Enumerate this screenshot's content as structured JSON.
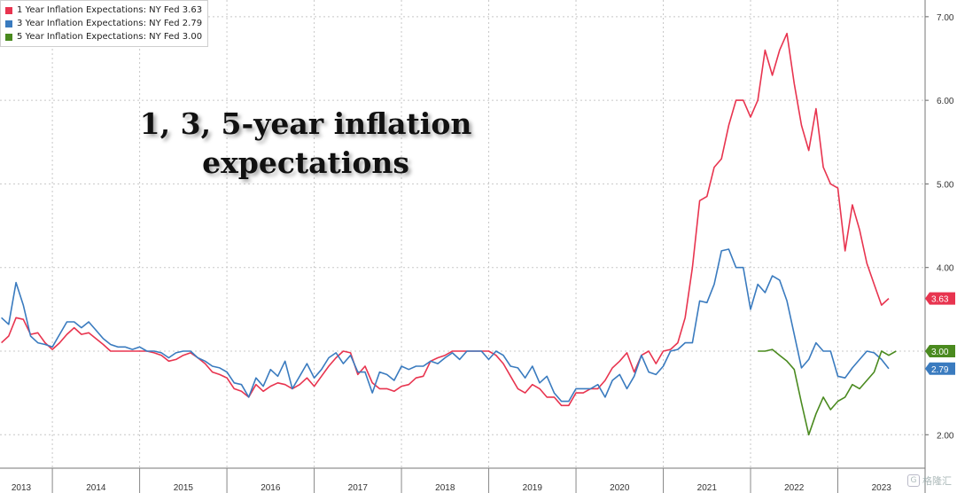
{
  "chart_data": {
    "type": "line",
    "title": "1, 3, 5-year inflation expectations",
    "ylim": [
      1.6,
      7.2
    ],
    "yticks": [
      "2.00",
      "3.00",
      "4.00",
      "5.00",
      "6.00",
      "7.00"
    ],
    "year_labels": [
      "2013",
      "2014",
      "2015",
      "2016",
      "2017",
      "2018",
      "2019",
      "2020",
      "2021",
      "2022",
      "2023"
    ],
    "legend_placement": "top-left",
    "grid": true,
    "series": [
      {
        "name": "1 Year Inflation Expectations: NY Fed",
        "last_value": "3.63",
        "color": "#e8344f",
        "points": [
          [
            "2013-06",
            3.1
          ],
          [
            "2013-07",
            3.18
          ],
          [
            "2013-08",
            3.4
          ],
          [
            "2013-09",
            3.38
          ],
          [
            "2013-10",
            3.2
          ],
          [
            "2013-11",
            3.22
          ],
          [
            "2013-12",
            3.1
          ],
          [
            "2014-01",
            3.02
          ],
          [
            "2014-02",
            3.1
          ],
          [
            "2014-03",
            3.2
          ],
          [
            "2014-04",
            3.28
          ],
          [
            "2014-05",
            3.2
          ],
          [
            "2014-06",
            3.22
          ],
          [
            "2014-07",
            3.15
          ],
          [
            "2014-08",
            3.08
          ],
          [
            "2014-09",
            3.0
          ],
          [
            "2014-10",
            3.0
          ],
          [
            "2014-11",
            3.0
          ],
          [
            "2014-12",
            3.0
          ],
          [
            "2015-01",
            3.0
          ],
          [
            "2015-02",
            3.0
          ],
          [
            "2015-03",
            2.98
          ],
          [
            "2015-04",
            2.95
          ],
          [
            "2015-05",
            2.88
          ],
          [
            "2015-06",
            2.9
          ],
          [
            "2015-07",
            2.95
          ],
          [
            "2015-08",
            2.98
          ],
          [
            "2015-09",
            2.92
          ],
          [
            "2015-10",
            2.85
          ],
          [
            "2015-11",
            2.75
          ],
          [
            "2015-12",
            2.72
          ],
          [
            "2016-01",
            2.68
          ],
          [
            "2016-02",
            2.55
          ],
          [
            "2016-03",
            2.52
          ],
          [
            "2016-04",
            2.45
          ],
          [
            "2016-05",
            2.6
          ],
          [
            "2016-06",
            2.52
          ],
          [
            "2016-07",
            2.58
          ],
          [
            "2016-08",
            2.62
          ],
          [
            "2016-09",
            2.6
          ],
          [
            "2016-10",
            2.55
          ],
          [
            "2016-11",
            2.6
          ],
          [
            "2016-12",
            2.68
          ],
          [
            "2017-01",
            2.58
          ],
          [
            "2017-02",
            2.7
          ],
          [
            "2017-03",
            2.82
          ],
          [
            "2017-04",
            2.92
          ],
          [
            "2017-05",
            3.0
          ],
          [
            "2017-06",
            2.98
          ],
          [
            "2017-07",
            2.72
          ],
          [
            "2017-08",
            2.82
          ],
          [
            "2017-09",
            2.62
          ],
          [
            "2017-10",
            2.55
          ],
          [
            "2017-11",
            2.55
          ],
          [
            "2017-12",
            2.52
          ],
          [
            "2018-01",
            2.58
          ],
          [
            "2018-02",
            2.6
          ],
          [
            "2018-03",
            2.68
          ],
          [
            "2018-04",
            2.7
          ],
          [
            "2018-05",
            2.88
          ],
          [
            "2018-06",
            2.92
          ],
          [
            "2018-07",
            2.95
          ],
          [
            "2018-08",
            3.0
          ],
          [
            "2018-09",
            3.0
          ],
          [
            "2018-10",
            3.0
          ],
          [
            "2018-11",
            3.0
          ],
          [
            "2018-12",
            3.0
          ],
          [
            "2019-01",
            3.0
          ],
          [
            "2019-02",
            2.95
          ],
          [
            "2019-03",
            2.85
          ],
          [
            "2019-04",
            2.7
          ],
          [
            "2019-05",
            2.55
          ],
          [
            "2019-06",
            2.5
          ],
          [
            "2019-07",
            2.6
          ],
          [
            "2019-08",
            2.55
          ],
          [
            "2019-09",
            2.45
          ],
          [
            "2019-10",
            2.45
          ],
          [
            "2019-11",
            2.35
          ],
          [
            "2019-12",
            2.35
          ],
          [
            "2020-01",
            2.5
          ],
          [
            "2020-02",
            2.5
          ],
          [
            "2020-03",
            2.55
          ],
          [
            "2020-04",
            2.55
          ],
          [
            "2020-05",
            2.65
          ],
          [
            "2020-06",
            2.8
          ],
          [
            "2020-07",
            2.88
          ],
          [
            "2020-08",
            2.98
          ],
          [
            "2020-09",
            2.75
          ],
          [
            "2020-10",
            2.95
          ],
          [
            "2020-11",
            3.0
          ],
          [
            "2020-12",
            2.85
          ],
          [
            "2021-01",
            3.0
          ],
          [
            "2021-02",
            3.02
          ],
          [
            "2021-03",
            3.1
          ],
          [
            "2021-04",
            3.4
          ],
          [
            "2021-05",
            4.0
          ],
          [
            "2021-06",
            4.8
          ],
          [
            "2021-07",
            4.85
          ],
          [
            "2021-08",
            5.2
          ],
          [
            "2021-09",
            5.3
          ],
          [
            "2021-10",
            5.7
          ],
          [
            "2021-11",
            6.0
          ],
          [
            "2021-12",
            6.0
          ],
          [
            "2022-01",
            5.8
          ],
          [
            "2022-02",
            6.0
          ],
          [
            "2022-03",
            6.6
          ],
          [
            "2022-04",
            6.3
          ],
          [
            "2022-05",
            6.6
          ],
          [
            "2022-06",
            6.8
          ],
          [
            "2022-07",
            6.2
          ],
          [
            "2022-08",
            5.7
          ],
          [
            "2022-09",
            5.4
          ],
          [
            "2022-10",
            5.9
          ],
          [
            "2022-11",
            5.2
          ],
          [
            "2022-12",
            5.0
          ],
          [
            "2023-01",
            4.95
          ],
          [
            "2023-02",
            4.2
          ],
          [
            "2023-03",
            4.75
          ],
          [
            "2023-04",
            4.45
          ],
          [
            "2023-05",
            4.05
          ],
          [
            "2023-06",
            3.8
          ],
          [
            "2023-07",
            3.55
          ],
          [
            "2023-08",
            3.63
          ]
        ]
      },
      {
        "name": "3 Year Inflation Expectations: NY Fed",
        "last_value": "2.79",
        "color": "#3a7bbf",
        "points": [
          [
            "2013-06",
            3.4
          ],
          [
            "2013-07",
            3.32
          ],
          [
            "2013-08",
            3.82
          ],
          [
            "2013-09",
            3.55
          ],
          [
            "2013-10",
            3.18
          ],
          [
            "2013-11",
            3.1
          ],
          [
            "2013-12",
            3.08
          ],
          [
            "2014-01",
            3.05
          ],
          [
            "2014-02",
            3.2
          ],
          [
            "2014-03",
            3.35
          ],
          [
            "2014-04",
            3.35
          ],
          [
            "2014-05",
            3.28
          ],
          [
            "2014-06",
            3.35
          ],
          [
            "2014-07",
            3.25
          ],
          [
            "2014-08",
            3.15
          ],
          [
            "2014-09",
            3.08
          ],
          [
            "2014-10",
            3.05
          ],
          [
            "2014-11",
            3.05
          ],
          [
            "2014-12",
            3.02
          ],
          [
            "2015-01",
            3.05
          ],
          [
            "2015-02",
            3.0
          ],
          [
            "2015-03",
            3.0
          ],
          [
            "2015-04",
            2.98
          ],
          [
            "2015-05",
            2.92
          ],
          [
            "2015-06",
            2.98
          ],
          [
            "2015-07",
            3.0
          ],
          [
            "2015-08",
            3.0
          ],
          [
            "2015-09",
            2.92
          ],
          [
            "2015-10",
            2.88
          ],
          [
            "2015-11",
            2.82
          ],
          [
            "2015-12",
            2.8
          ],
          [
            "2016-01",
            2.75
          ],
          [
            "2016-02",
            2.62
          ],
          [
            "2016-03",
            2.6
          ],
          [
            "2016-04",
            2.45
          ],
          [
            "2016-05",
            2.68
          ],
          [
            "2016-06",
            2.58
          ],
          [
            "2016-07",
            2.78
          ],
          [
            "2016-08",
            2.7
          ],
          [
            "2016-09",
            2.88
          ],
          [
            "2016-10",
            2.55
          ],
          [
            "2016-11",
            2.7
          ],
          [
            "2016-12",
            2.85
          ],
          [
            "2017-01",
            2.68
          ],
          [
            "2017-02",
            2.78
          ],
          [
            "2017-03",
            2.92
          ],
          [
            "2017-04",
            2.98
          ],
          [
            "2017-05",
            2.85
          ],
          [
            "2017-06",
            2.95
          ],
          [
            "2017-07",
            2.75
          ],
          [
            "2017-08",
            2.75
          ],
          [
            "2017-09",
            2.5
          ],
          [
            "2017-10",
            2.75
          ],
          [
            "2017-11",
            2.72
          ],
          [
            "2017-12",
            2.65
          ],
          [
            "2018-01",
            2.82
          ],
          [
            "2018-02",
            2.78
          ],
          [
            "2018-03",
            2.82
          ],
          [
            "2018-04",
            2.82
          ],
          [
            "2018-05",
            2.88
          ],
          [
            "2018-06",
            2.85
          ],
          [
            "2018-07",
            2.92
          ],
          [
            "2018-08",
            2.98
          ],
          [
            "2018-09",
            2.9
          ],
          [
            "2018-10",
            3.0
          ],
          [
            "2018-11",
            3.0
          ],
          [
            "2018-12",
            3.0
          ],
          [
            "2019-01",
            2.9
          ],
          [
            "2019-02",
            3.0
          ],
          [
            "2019-03",
            2.95
          ],
          [
            "2019-04",
            2.82
          ],
          [
            "2019-05",
            2.8
          ],
          [
            "2019-06",
            2.68
          ],
          [
            "2019-07",
            2.82
          ],
          [
            "2019-08",
            2.62
          ],
          [
            "2019-09",
            2.7
          ],
          [
            "2019-10",
            2.5
          ],
          [
            "2019-11",
            2.4
          ],
          [
            "2019-12",
            2.4
          ],
          [
            "2020-01",
            2.55
          ],
          [
            "2020-02",
            2.55
          ],
          [
            "2020-03",
            2.55
          ],
          [
            "2020-04",
            2.6
          ],
          [
            "2020-05",
            2.45
          ],
          [
            "2020-06",
            2.65
          ],
          [
            "2020-07",
            2.72
          ],
          [
            "2020-08",
            2.55
          ],
          [
            "2020-09",
            2.7
          ],
          [
            "2020-10",
            2.95
          ],
          [
            "2020-11",
            2.75
          ],
          [
            "2020-12",
            2.72
          ],
          [
            "2021-01",
            2.82
          ],
          [
            "2021-02",
            3.0
          ],
          [
            "2021-03",
            3.02
          ],
          [
            "2021-04",
            3.1
          ],
          [
            "2021-05",
            3.1
          ],
          [
            "2021-06",
            3.6
          ],
          [
            "2021-07",
            3.58
          ],
          [
            "2021-08",
            3.8
          ],
          [
            "2021-09",
            4.2
          ],
          [
            "2021-10",
            4.22
          ],
          [
            "2021-11",
            4.0
          ],
          [
            "2021-12",
            4.0
          ],
          [
            "2022-01",
            3.5
          ],
          [
            "2022-02",
            3.8
          ],
          [
            "2022-03",
            3.7
          ],
          [
            "2022-04",
            3.9
          ],
          [
            "2022-05",
            3.85
          ],
          [
            "2022-06",
            3.6
          ],
          [
            "2022-07",
            3.2
          ],
          [
            "2022-08",
            2.8
          ],
          [
            "2022-09",
            2.9
          ],
          [
            "2022-10",
            3.1
          ],
          [
            "2022-11",
            3.0
          ],
          [
            "2022-12",
            3.0
          ],
          [
            "2023-01",
            2.7
          ],
          [
            "2023-02",
            2.68
          ],
          [
            "2023-03",
            2.8
          ],
          [
            "2023-04",
            2.9
          ],
          [
            "2023-05",
            3.0
          ],
          [
            "2023-06",
            2.98
          ],
          [
            "2023-07",
            2.9
          ],
          [
            "2023-08",
            2.79
          ]
        ]
      },
      {
        "name": "5 Year Inflation Expectations: NY Fed",
        "last_value": "3.00",
        "color": "#4a8a1f",
        "points": [
          [
            "2022-02",
            3.0
          ],
          [
            "2022-03",
            3.0
          ],
          [
            "2022-04",
            3.02
          ],
          [
            "2022-05",
            2.95
          ],
          [
            "2022-06",
            2.88
          ],
          [
            "2022-07",
            2.78
          ],
          [
            "2022-08",
            2.38
          ],
          [
            "2022-09",
            2.0
          ],
          [
            "2022-10",
            2.25
          ],
          [
            "2022-11",
            2.45
          ],
          [
            "2022-12",
            2.3
          ],
          [
            "2023-01",
            2.4
          ],
          [
            "2023-02",
            2.45
          ],
          [
            "2023-03",
            2.6
          ],
          [
            "2023-04",
            2.55
          ],
          [
            "2023-05",
            2.65
          ],
          [
            "2023-06",
            2.75
          ],
          [
            "2023-07",
            3.0
          ],
          [
            "2023-08",
            2.95
          ],
          [
            "2023-09",
            3.0
          ]
        ]
      }
    ]
  },
  "watermark": {
    "icon": "G",
    "text": "格隆汇"
  }
}
